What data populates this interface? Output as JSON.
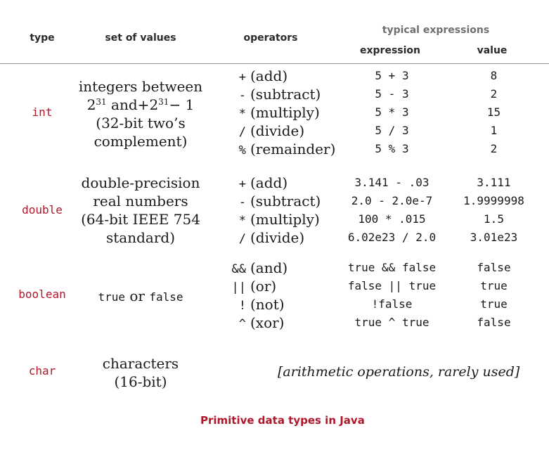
{
  "headers": {
    "type": "type",
    "set_of_values": "set of values",
    "operators": "operators",
    "typical_expressions": "typical expressions",
    "expression": "expression",
    "value": "value"
  },
  "rows": {
    "int": {
      "name": "int",
      "values_line1": "integers between",
      "values_base_a": "2",
      "values_exp_a": "31",
      "values_mid": " and+",
      "values_base_b": "2",
      "values_exp_b": "31",
      "values_tail": "− 1",
      "values_line3": "(32-bit two’s",
      "values_line4": "complement)",
      "ops": [
        {
          "sym": "+",
          "desc": "(add)"
        },
        {
          "sym": "-",
          "desc": "(subtract)"
        },
        {
          "sym": "*",
          "desc": "(multiply)"
        },
        {
          "sym": "/",
          "desc": "(divide)"
        },
        {
          "sym": "%",
          "desc": "(remainder)"
        }
      ],
      "expressions": [
        "5 + 3",
        "5 - 3",
        "5 * 3",
        "5 / 3",
        "5 % 3"
      ],
      "results": [
        "8",
        "2",
        "15",
        "1",
        "2"
      ]
    },
    "double": {
      "name": "double",
      "values": [
        "double-precision",
        "real numbers",
        "(64-bit IEEE 754",
        "standard)"
      ],
      "ops": [
        {
          "sym": "+",
          "desc": "(add)"
        },
        {
          "sym": "-",
          "desc": "(subtract)"
        },
        {
          "sym": "*",
          "desc": "(multiply)"
        },
        {
          "sym": "/",
          "desc": "(divide)"
        }
      ],
      "expressions": [
        "3.141 - .03",
        "2.0 - 2.0e-7",
        "100 * .015",
        "6.02e23 / 2.0"
      ],
      "results": [
        "3.111",
        "1.9999998",
        "1.5",
        "3.01e23"
      ]
    },
    "boolean": {
      "name": "boolean",
      "values_true": "true",
      "values_or": "or",
      "values_false": "false",
      "ops": [
        {
          "sym": "&&",
          "desc": "(and)"
        },
        {
          "sym": "||",
          "desc": "(or)"
        },
        {
          "sym": "!",
          "desc": "(not)"
        },
        {
          "sym": "^",
          "desc": "(xor)"
        }
      ],
      "expressions": [
        "true && false",
        "false || true",
        "!false",
        "true ^ true"
      ],
      "results": [
        "false",
        "true",
        "true",
        "false"
      ]
    },
    "char": {
      "name": "char",
      "values": [
        "characters",
        "(16-bit)"
      ],
      "note": "[arithmetic operations, rarely used]"
    }
  },
  "caption": "Primitive data types in Java"
}
